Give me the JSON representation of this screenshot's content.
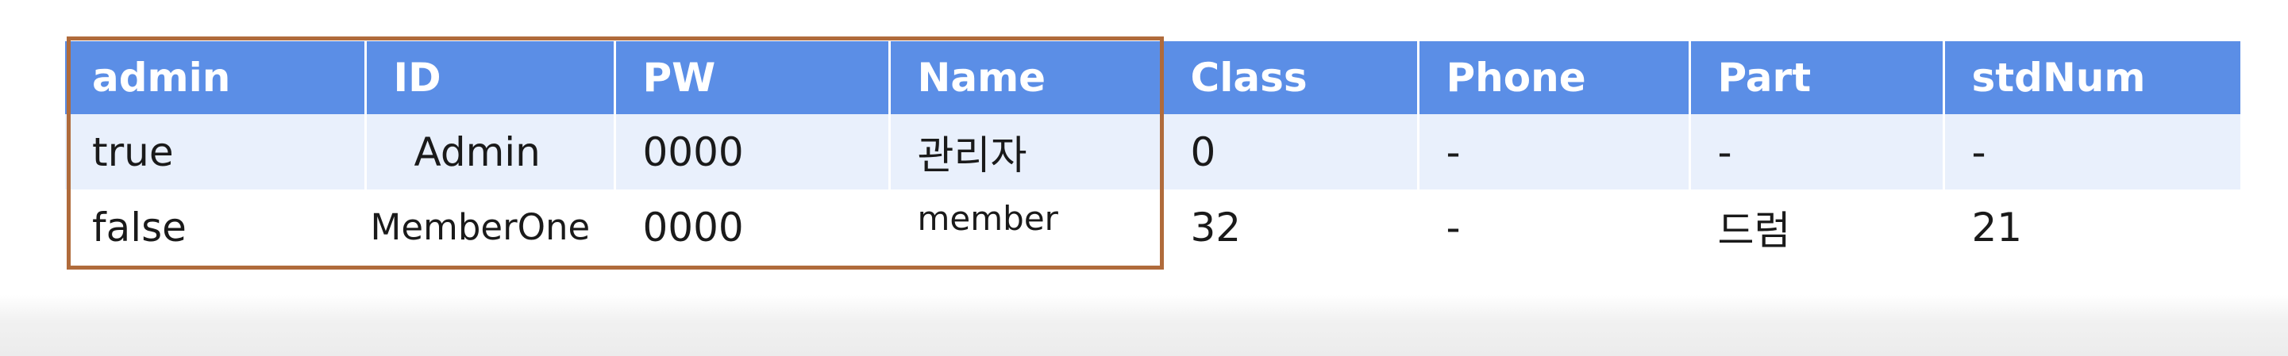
{
  "table": {
    "headers": [
      "admin",
      "ID",
      "PW",
      "Name",
      "Class",
      "Phone",
      "Part",
      "stdNum"
    ],
    "rows": [
      {
        "admin": "true",
        "id": "Admin",
        "pw": "0000",
        "name": "관리자",
        "class": "0",
        "phone": "-",
        "part": "-",
        "stdnum": "-"
      },
      {
        "admin": "false",
        "id": "MemberOne",
        "pw": "0000",
        "name": "member",
        "class": "32",
        "phone": "-",
        "part": "드럼",
        "stdnum": "21"
      }
    ]
  },
  "colors": {
    "header_bg": "#5b8ee6",
    "header_text": "#ffffff",
    "row_alt_bg": "#e9f0fc",
    "highlight_border": "#b06b3b"
  }
}
